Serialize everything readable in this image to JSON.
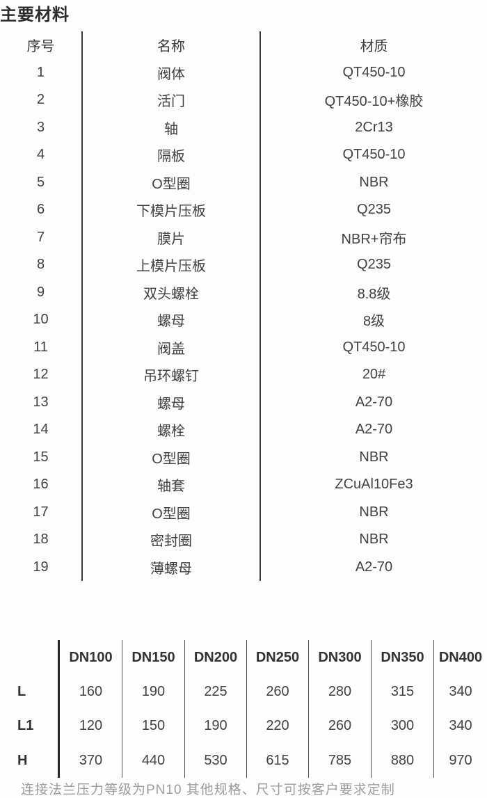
{
  "page": {
    "title": "主要材料",
    "footer_note": "连接法兰压力等级为PN10 其他规格、尺寸可按客户要求定制"
  },
  "materials_table": {
    "headers": [
      "序号",
      "名称",
      "材质"
    ],
    "rows": [
      [
        "1",
        "阀体",
        "QT450-10"
      ],
      [
        "2",
        "活门",
        "QT450-10+橡胶"
      ],
      [
        "3",
        "轴",
        "2Cr13"
      ],
      [
        "4",
        "隔板",
        "QT450-10"
      ],
      [
        "5",
        "O型圈",
        "NBR"
      ],
      [
        "6",
        "下模片压板",
        "Q235"
      ],
      [
        "7",
        "膜片",
        "NBR+帘布"
      ],
      [
        "8",
        "上模片压板",
        "Q235"
      ],
      [
        "9",
        "双头螺栓",
        "8.8级"
      ],
      [
        "10",
        "螺母",
        "8级"
      ],
      [
        "11",
        "阀盖",
        "QT450-10"
      ],
      [
        "12",
        "吊环螺钉",
        "20#"
      ],
      [
        "13",
        "螺母",
        "A2-70"
      ],
      [
        "14",
        "螺栓",
        "A2-70"
      ],
      [
        "15",
        "O型圈",
        "NBR"
      ],
      [
        "16",
        "轴套",
        "ZCuAl10Fe3"
      ],
      [
        "17",
        "O型圈",
        "NBR"
      ],
      [
        "18",
        "密封圈",
        "NBR"
      ],
      [
        "19",
        "薄螺母",
        "A2-70"
      ]
    ]
  },
  "dimensions_table": {
    "columns": [
      "DN100",
      "DN150",
      "DN200",
      "DN250",
      "DN300",
      "DN350",
      "DN400"
    ],
    "rows": [
      {
        "label": "L",
        "values": [
          160,
          190,
          225,
          260,
          280,
          315,
          340
        ]
      },
      {
        "label": "L1",
        "values": [
          120,
          150,
          190,
          220,
          260,
          300,
          340
        ]
      },
      {
        "label": "H",
        "values": [
          370,
          440,
          530,
          615,
          785,
          880,
          970
        ]
      }
    ]
  },
  "colors": {
    "background": "#fdfdfd",
    "text": "#3f3f3f",
    "divider_dark": "#3a3a3a",
    "footer_gray": "#9d9d9d"
  }
}
